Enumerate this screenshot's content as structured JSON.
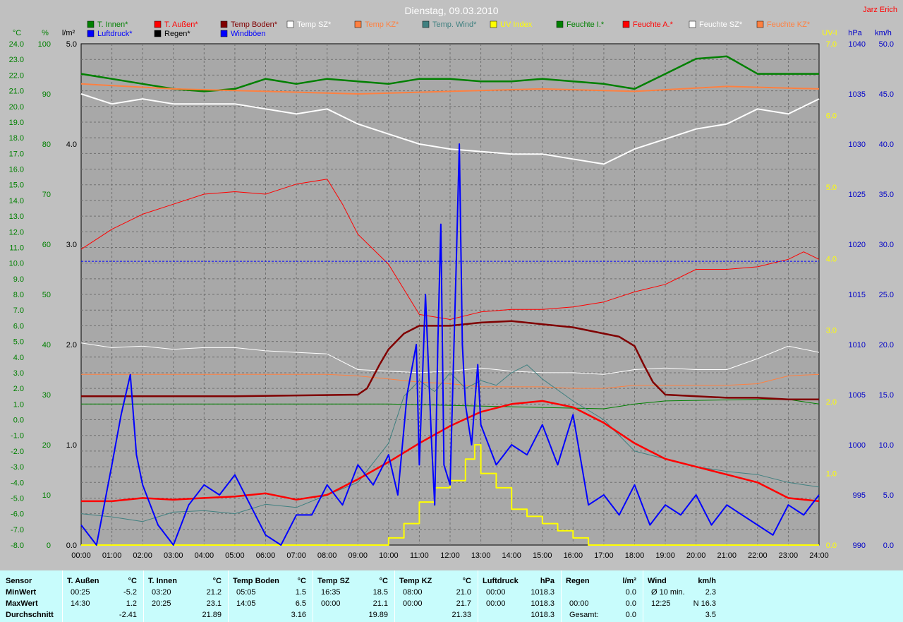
{
  "title": "Dienstag, 09.03.2010",
  "author": "Jarz Erich",
  "colors": {
    "bg": "#c0c0c0",
    "plot_bg": "#a8a8a8",
    "summary_bg": "#c8fcfc",
    "left_axis_text": "#008000",
    "right_axis_uv": "#ffff00",
    "right_axis_hpa": "#0000c8"
  },
  "legend": [
    {
      "label": "T. Innen*",
      "color": "#008000",
      "text_color": "#008000"
    },
    {
      "label": "Luftdruck*",
      "color": "#0000ff",
      "text_color": "#0000ff"
    },
    {
      "label": "T. Außen*",
      "color": "#ff0000",
      "text_color": "#ff0000"
    },
    {
      "label": "Regen*",
      "color": "#000000",
      "text_color": "#000000"
    },
    {
      "label": "Temp Boden*",
      "color": "#800000",
      "text_color": "#800000"
    },
    {
      "label": "Windböen",
      "color": "#0000ff",
      "text_color": "#0000ff"
    },
    {
      "label": "Temp SZ*",
      "color": "#ffffff",
      "text_color": "#ffffff"
    },
    {
      "label": "Temp KZ*",
      "color": "#ff8040",
      "text_color": "#ff8040"
    },
    {
      "label": "Temp. Wind*",
      "color": "#408080",
      "text_color": "#408080"
    },
    {
      "label": "UV Index",
      "color": "#ffff00",
      "text_color": "#ffff00"
    },
    {
      "label": "Feuchte I.*",
      "color": "#008000",
      "text_color": "#008000"
    },
    {
      "label": "Feuchte A.*",
      "color": "#ff0000",
      "text_color": "#ff0000"
    },
    {
      "label": "Feuchte SZ*",
      "color": "#ffffff",
      "text_color": "#ffffff"
    },
    {
      "label": "Feuchte KZ*",
      "color": "#ff8040",
      "text_color": "#ff8040"
    }
  ],
  "axes": {
    "units": {
      "celsius": "°C",
      "percent": "%",
      "rain": "l/m²",
      "uv": "UV-I",
      "hpa": "hPa",
      "kmh": "km/h"
    },
    "celsius_ticks": [
      "24.0",
      "23.0",
      "22.0",
      "21.0",
      "20.0",
      "19.0",
      "18.0",
      "17.0",
      "16.0",
      "15.0",
      "14.0",
      "13.0",
      "12.0",
      "11.0",
      "10.0",
      "9.0",
      "8.0",
      "7.0",
      "6.0",
      "5.0",
      "4.0",
      "3.0",
      "2.0",
      "1.0",
      "0.0",
      "-1.0",
      "-2.0",
      "-3.0",
      "-4.0",
      "-5.0",
      "-6.0",
      "-7.0",
      "-8.0"
    ],
    "percent_ticks": [
      "100",
      "90",
      "80",
      "70",
      "60",
      "50",
      "40",
      "30",
      "20",
      "10",
      "0"
    ],
    "rain_ticks": [
      "5.0",
      "4.0",
      "3.0",
      "2.0",
      "1.0",
      "0.0"
    ],
    "uv_ticks": [
      "7.0",
      "6.0",
      "5.0",
      "4.0",
      "3.0",
      "2.0",
      "1.0",
      "0.0"
    ],
    "hpa_ticks": [
      "1040",
      "1035",
      "1030",
      "1025",
      "1020",
      "1015",
      "1010",
      "1005",
      "1000",
      "995",
      "990"
    ],
    "kmh_ticks": [
      "50.0",
      "45.0",
      "40.0",
      "35.0",
      "30.0",
      "25.0",
      "20.0",
      "15.0",
      "10.0",
      "5.0",
      "0.0"
    ],
    "time_ticks": [
      "00:00",
      "01:00",
      "02:00",
      "03:00",
      "04:00",
      "05:00",
      "06:00",
      "07:00",
      "08:00",
      "09:00",
      "10:00",
      "11:00",
      "12:00",
      "13:00",
      "14:00",
      "15:00",
      "16:00",
      "17:00",
      "18:00",
      "19:00",
      "20:00",
      "21:00",
      "22:00",
      "23:00",
      "24:00"
    ]
  },
  "chart_data": {
    "type": "line",
    "title": "Dienstag, 09.03.2010",
    "x_range": [
      0,
      24
    ],
    "ylim_celsius": [
      -8,
      24
    ],
    "ylim_percent": [
      0,
      100
    ],
    "ylim_rain": [
      0,
      5
    ],
    "ylim_uv": [
      0,
      7
    ],
    "ylim_hpa": [
      990,
      1040
    ],
    "ylim_kmh": [
      0,
      50
    ],
    "grid": true,
    "series": [
      {
        "name": "Feuchte I.*",
        "axis": "percent",
        "color": "#008000",
        "width": 2.5,
        "x": [
          0,
          1,
          2,
          3,
          4,
          5,
          6,
          7,
          8,
          9,
          10,
          11,
          12,
          13,
          14,
          15,
          16,
          17,
          18,
          19,
          20,
          21,
          22,
          23,
          24
        ],
        "y": [
          94,
          93,
          92,
          91,
          90.5,
          91,
          93,
          92,
          93,
          92.5,
          92,
          93,
          93,
          92.5,
          92.5,
          93,
          92.5,
          92,
          91,
          94,
          97,
          97.5,
          94,
          94,
          94
        ]
      },
      {
        "name": "Feuchte KZ*",
        "axis": "percent",
        "color": "#ff8040",
        "width": 2,
        "x": [
          0,
          3,
          6,
          9,
          12,
          15,
          18,
          21,
          24
        ],
        "y": [
          92,
          91,
          90.5,
          90,
          90.5,
          91,
          90.5,
          91.5,
          91
        ]
      },
      {
        "name": "Feuchte SZ*",
        "axis": "percent",
        "color": "#ffffff",
        "width": 2,
        "x": [
          0,
          1,
          2,
          3,
          4,
          5,
          6,
          7,
          8,
          9,
          10,
          11,
          12,
          13,
          14,
          15,
          16,
          17,
          18,
          19,
          20,
          21,
          22,
          23,
          24
        ],
        "y": [
          90,
          88,
          89,
          88,
          88,
          88,
          87,
          86,
          87,
          84,
          82,
          80,
          79,
          78.5,
          78,
          78,
          77,
          76,
          79,
          81,
          83,
          84,
          87,
          86,
          89
        ]
      },
      {
        "name": "Feuchte A.*",
        "axis": "percent",
        "color": "#ff0000",
        "width": 1,
        "x": [
          0,
          1,
          2,
          3,
          4,
          5,
          6,
          7,
          8,
          8.5,
          9,
          10,
          11,
          12,
          13,
          14,
          15,
          16,
          17,
          18,
          19,
          20,
          21,
          22,
          23,
          23.5,
          24
        ],
        "y": [
          59,
          63,
          66,
          68,
          70,
          70.5,
          70,
          72,
          73,
          68,
          62,
          56,
          46,
          45,
          46.5,
          47,
          47,
          47.5,
          48.5,
          50.5,
          52,
          55,
          55,
          55.5,
          57,
          58.5,
          57
        ]
      },
      {
        "name": "T. Innen*",
        "axis": "celsius",
        "color": "#008000",
        "width": 1,
        "x": [
          0,
          9,
          10,
          17,
          18,
          19,
          22,
          23,
          24
        ],
        "y": [
          1.0,
          1.0,
          1.0,
          0.7,
          1.0,
          1.2,
          1.3,
          1.3,
          1.0
        ]
      },
      {
        "name": "Temp SZ*",
        "axis": "celsius",
        "color": "#ffffff",
        "width": 1,
        "x": [
          0,
          1,
          2,
          3,
          4,
          5,
          6,
          7,
          8,
          9,
          10,
          11,
          12,
          13,
          14,
          15,
          16,
          17,
          18,
          19,
          20,
          21,
          22,
          23,
          24
        ],
        "y": [
          4.9,
          4.6,
          4.7,
          4.5,
          4.6,
          4.6,
          4.4,
          4.3,
          4.2,
          3.2,
          3.1,
          3.0,
          3.1,
          3.3,
          3.1,
          3.0,
          3.0,
          2.9,
          3.2,
          3.3,
          3.2,
          3.2,
          3.9,
          4.7,
          4.3
        ]
      },
      {
        "name": "Temp KZ*",
        "axis": "celsius",
        "color": "#ff8040",
        "width": 1,
        "x": [
          0,
          8,
          9,
          10,
          11,
          12,
          13,
          14,
          15,
          16,
          17,
          18,
          19,
          20,
          21,
          22,
          23,
          24
        ],
        "y": [
          2.9,
          2.9,
          2.8,
          2.6,
          2.4,
          2.3,
          2.1,
          2.1,
          2.1,
          2.0,
          2.0,
          2.2,
          2.2,
          2.2,
          2.2,
          2.3,
          2.8,
          2.9
        ]
      },
      {
        "name": "Temp. Wind*",
        "axis": "celsius",
        "color": "#408080",
        "width": 1,
        "x": [
          0,
          1,
          2,
          3,
          4,
          5,
          6,
          7,
          8,
          9,
          10,
          10.5,
          11,
          11.5,
          12,
          12.5,
          13,
          13.5,
          14,
          14.5,
          15,
          16,
          17,
          18,
          19,
          20,
          21,
          22,
          23,
          24
        ],
        "y": [
          -6.0,
          -6.2,
          -6.5,
          -5.9,
          -5.8,
          -6.0,
          -5.4,
          -5.6,
          -4.8,
          -4.0,
          -1.5,
          1.5,
          2.5,
          1.8,
          3.0,
          2.0,
          2.5,
          2.2,
          3.0,
          3.5,
          2.6,
          1.2,
          0.0,
          -2.0,
          -2.5,
          -3.0,
          -3.3,
          -3.5,
          -4.0,
          -4.3
        ]
      },
      {
        "name": "Temp Boden*",
        "axis": "celsius",
        "color": "#800000",
        "width": 2.5,
        "x": [
          0,
          5,
          9,
          9.3,
          9.7,
          10,
          10.5,
          11,
          12,
          13,
          14,
          15,
          16,
          17,
          17.5,
          18,
          18.3,
          18.6,
          19,
          20,
          21,
          22,
          23,
          24
        ],
        "y": [
          1.5,
          1.5,
          1.6,
          2.0,
          3.5,
          4.5,
          5.5,
          6.0,
          6.0,
          6.2,
          6.3,
          6.1,
          5.9,
          5.5,
          5.3,
          4.7,
          3.5,
          2.4,
          1.6,
          1.5,
          1.4,
          1.4,
          1.3,
          1.3
        ]
      },
      {
        "name": "T. Außen*",
        "axis": "celsius",
        "color": "#ff0000",
        "width": 2.5,
        "x": [
          0,
          1,
          2,
          3,
          4,
          5,
          6,
          7,
          8,
          9,
          10,
          11,
          12,
          13,
          14,
          15,
          16,
          17,
          18,
          19,
          20,
          21,
          22,
          23,
          24
        ],
        "y": [
          -5.2,
          -5.2,
          -5.0,
          -5.1,
          -5.0,
          -4.9,
          -4.7,
          -5.1,
          -4.8,
          -3.8,
          -2.7,
          -1.5,
          -0.4,
          0.5,
          1.0,
          1.2,
          0.8,
          -0.2,
          -1.5,
          -2.5,
          -3.0,
          -3.5,
          -4.0,
          -5.0,
          -5.2
        ]
      },
      {
        "name": "Luftdruck*",
        "axis": "hpa",
        "color": "#0000ff",
        "width": 1,
        "dashed": true,
        "x": [
          0,
          24
        ],
        "y": [
          1018.3,
          1018.3
        ]
      },
      {
        "name": "UV Index",
        "axis": "uv",
        "color": "#ffff00",
        "width": 2,
        "step": true,
        "x": [
          0,
          9.5,
          10,
          10.5,
          11,
          11.5,
          12,
          12.5,
          12.8,
          13,
          13.5,
          14,
          14.5,
          15,
          15.5,
          16,
          16.5,
          24
        ],
        "y": [
          0,
          0,
          0.1,
          0.3,
          0.6,
          0.8,
          0.9,
          1.2,
          1.4,
          1.0,
          0.8,
          0.5,
          0.4,
          0.3,
          0.2,
          0.1,
          0,
          0
        ]
      },
      {
        "name": "Windböen",
        "axis": "kmh",
        "color": "#0000ff",
        "width": 2,
        "generated": true,
        "x": [
          0,
          0.5,
          1,
          1.3,
          1.6,
          1.8,
          2,
          2.5,
          3,
          3.5,
          4,
          4.5,
          5,
          5.5,
          6,
          6.5,
          7,
          7.5,
          8,
          8.5,
          9,
          9.5,
          10,
          10.3,
          10.6,
          10.9,
          11,
          11.2,
          11.4,
          11.5,
          11.6,
          11.7,
          11.8,
          12,
          12.2,
          12.3,
          12.4,
          12.5,
          12.7,
          12.9,
          13,
          13.5,
          14,
          14.5,
          15,
          15.5,
          16,
          16.5,
          17,
          17.5,
          18,
          18.5,
          19,
          19.5,
          20,
          20.5,
          21,
          21.5,
          22,
          22.5,
          23,
          23.5,
          24
        ],
        "y": [
          2,
          0,
          8,
          13,
          17,
          9,
          6,
          2,
          0,
          4,
          6,
          5,
          7,
          4,
          1,
          0,
          3,
          3,
          6,
          4,
          8,
          6,
          9,
          5,
          15,
          20,
          8,
          25,
          10,
          4,
          20,
          32,
          8,
          6,
          28,
          40,
          20,
          14,
          10,
          18,
          12,
          8,
          10,
          9,
          12,
          8,
          13,
          4,
          5,
          3,
          6,
          2,
          4,
          3,
          5,
          2,
          4,
          3,
          2,
          1,
          4,
          3,
          5
        ]
      }
    ]
  },
  "summary": {
    "row_labels": [
      "Sensor",
      "MinWert",
      "MaxWert",
      "Durchschnitt"
    ],
    "columns": [
      {
        "name": "T. Außen",
        "unit": "°C",
        "rows": [
          [
            "00:25",
            "-5.2"
          ],
          [
            "14:30",
            "1.2"
          ],
          [
            "",
            "-2.41"
          ]
        ]
      },
      {
        "name": "T. Innen",
        "unit": "°C",
        "rows": [
          [
            "03:20",
            "21.2"
          ],
          [
            "20:25",
            "23.1"
          ],
          [
            "",
            "21.89"
          ]
        ]
      },
      {
        "name": "Temp Boden",
        "unit": "°C",
        "rows": [
          [
            "05:05",
            "1.5"
          ],
          [
            "14:05",
            "6.5"
          ],
          [
            "",
            "3.16"
          ]
        ]
      },
      {
        "name": "Temp SZ",
        "unit": "°C",
        "rows": [
          [
            "16:35",
            "18.5"
          ],
          [
            "00:00",
            "21.1"
          ],
          [
            "",
            "19.89"
          ]
        ]
      },
      {
        "name": "Temp KZ",
        "unit": "°C",
        "rows": [
          [
            "08:00",
            "21.0"
          ],
          [
            "00:00",
            "21.7"
          ],
          [
            "",
            "21.33"
          ]
        ]
      },
      {
        "name": "Luftdruck",
        "unit": "hPa",
        "rows": [
          [
            "00:00",
            "1018.3"
          ],
          [
            "00:00",
            "1018.3"
          ],
          [
            "",
            "1018.3"
          ]
        ]
      },
      {
        "name": "Regen",
        "unit": "l/m²",
        "rows": [
          [
            "",
            "0.0"
          ],
          [
            "00:00",
            "0.0"
          ],
          [
            "Gesamt:",
            "0.0"
          ]
        ]
      },
      {
        "name": "Wind",
        "unit": "km/h",
        "rows": [
          [
            "Ø 10 min.",
            "2.3"
          ],
          [
            "12:25",
            "N 16.3"
          ],
          [
            "",
            "3.5"
          ]
        ]
      }
    ]
  }
}
